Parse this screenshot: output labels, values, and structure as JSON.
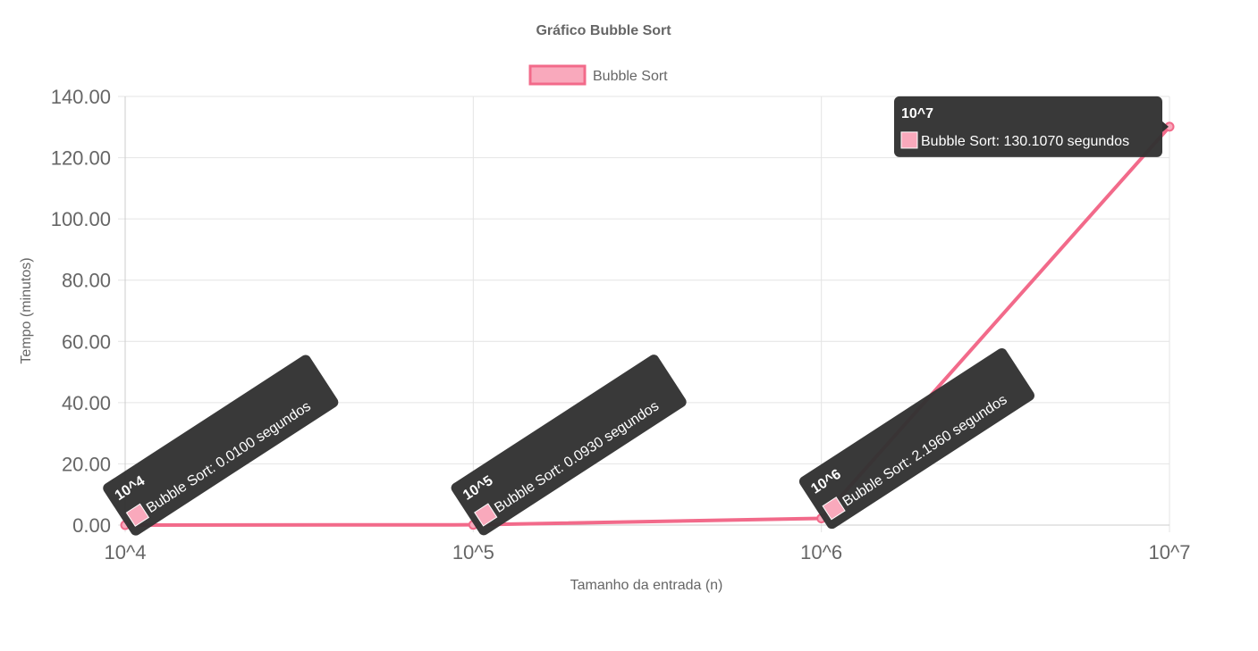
{
  "chart_data": {
    "type": "line",
    "title": "Gráfico Bubble Sort",
    "xlabel": "Tamanho da entrada (n)",
    "ylabel": "Tempo (minutos)",
    "categories": [
      "10^4",
      "10^5",
      "10^6",
      "10^7"
    ],
    "series": [
      {
        "name": "Bubble Sort",
        "values": [
          0.01,
          0.093,
          2.196,
          130.107
        ]
      }
    ],
    "ylim": [
      0,
      140
    ],
    "yticks": [
      "0.00",
      "20.00",
      "40.00",
      "60.00",
      "80.00",
      "100.00",
      "120.00",
      "140.00"
    ],
    "grid": true,
    "legend_position": "top",
    "colors": {
      "line": "#f26a8a",
      "fill": "#f9a9bc",
      "tooltip_bg": "#333333"
    },
    "tooltips": [
      {
        "title": "10^4",
        "label": "Bubble Sort: 0.0100 segundos"
      },
      {
        "title": "10^5",
        "label": "Bubble Sort: 0.0930 segundos"
      },
      {
        "title": "10^6",
        "label": "Bubble Sort: 2.1960 segundos"
      },
      {
        "title": "10^7",
        "label": "Bubble Sort: 130.1070 segundos"
      }
    ]
  }
}
